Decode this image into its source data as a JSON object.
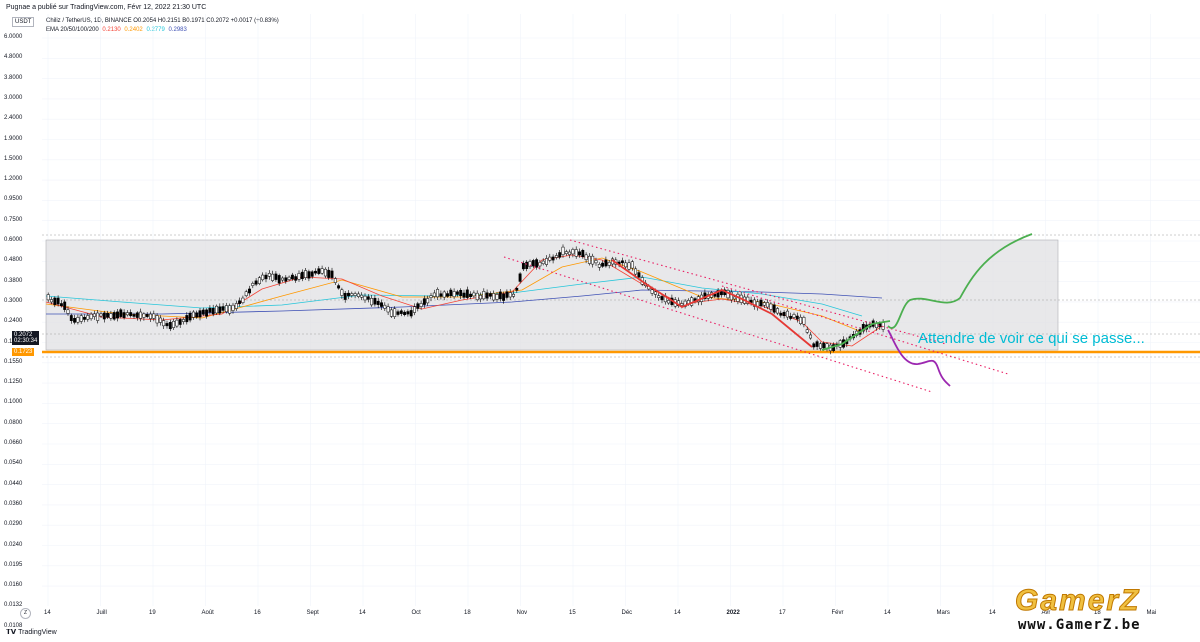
{
  "header": {
    "published_line": "Pugnae a publié sur TradingView.com, Févr 12, 2022 21:30 UTC"
  },
  "legend": {
    "symbol_line": "Chiliz / TetherUS, 1D, BINANCE  O0.2054  H0.2151  B0.1971  C0.2072  +0.0017 (+0.83%)",
    "ema_label": "EMA 20/50/100/200",
    "ema_values": [
      "0.2130",
      "0.2402",
      "0.2779",
      "0.2983"
    ],
    "ema_colors": [
      "#f44336",
      "#ff9800",
      "#26c6da",
      "#3f51b5"
    ]
  },
  "price_axis": {
    "currency": "USDT",
    "labels": [
      "6.0000",
      "4.8000",
      "3.8000",
      "3.0000",
      "2.4000",
      "1.9000",
      "1.5000",
      "1.2000",
      "0.9500",
      "0.7500",
      "0.6000",
      "0.4800",
      "0.3800",
      "0.3000",
      "0.2400",
      "0.1950",
      "0.1550",
      "0.1250",
      "0.1000",
      "0.0800",
      "0.0660",
      "0.0540",
      "0.0440",
      "0.0360",
      "0.0290",
      "0.0240",
      "0.0195",
      "0.0160",
      "0.0132",
      "0.0108"
    ],
    "current_price": "0.2072",
    "countdown": "02:30:34",
    "support_price": "0.1723"
  },
  "time_axis": {
    "labels": [
      "14",
      "Juill",
      "19",
      "Août",
      "16",
      "Sept",
      "14",
      "Oct",
      "18",
      "Nov",
      "15",
      "Déc",
      "14",
      "2022",
      "17",
      "Févr",
      "14",
      "Mars",
      "14",
      "Avr",
      "18",
      "Mai"
    ]
  },
  "annotation": {
    "text": "Attendre de voir ce qui se passe...",
    "color": "#00bcd4"
  },
  "footer": {
    "brand": "TradingView",
    "zoom_button": "Z"
  },
  "watermark": {
    "logo": "GamerZ",
    "url": "www.GamerZ.be"
  },
  "colors": {
    "support_line": "#ff9800",
    "bullish_path": "#4caf50",
    "bearish_path": "#9c27b0",
    "trend_lines": "#e91e63",
    "range_box": "#e0e0e3"
  }
}
